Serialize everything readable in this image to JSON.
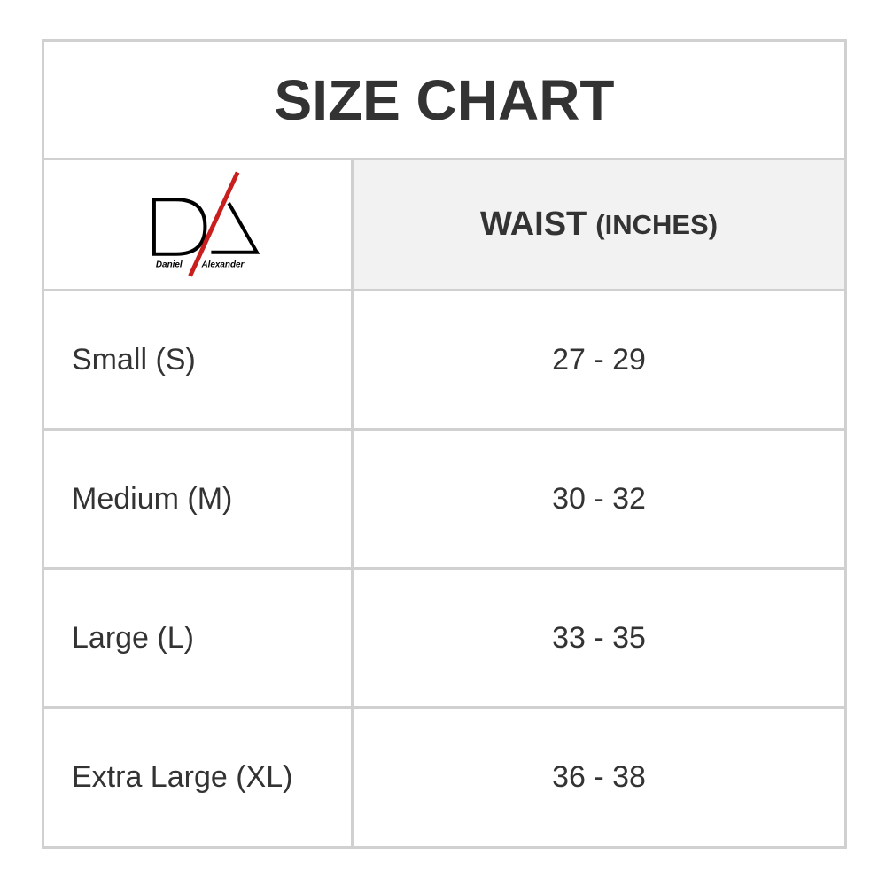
{
  "title": "SIZE CHART",
  "logo": {
    "text_left": "Daniel",
    "text_right": "Alexander",
    "accent": "#c81e1e"
  },
  "header": {
    "column": "WAIST",
    "unit": "(INCHES)"
  },
  "rows": [
    {
      "size": "Small (S)",
      "waist": "27 - 29"
    },
    {
      "size": "Medium (M)",
      "waist": "30 - 32"
    },
    {
      "size": "Large (L)",
      "waist": "33 - 35"
    },
    {
      "size": "Extra Large (XL)",
      "waist": "36 - 38"
    }
  ]
}
